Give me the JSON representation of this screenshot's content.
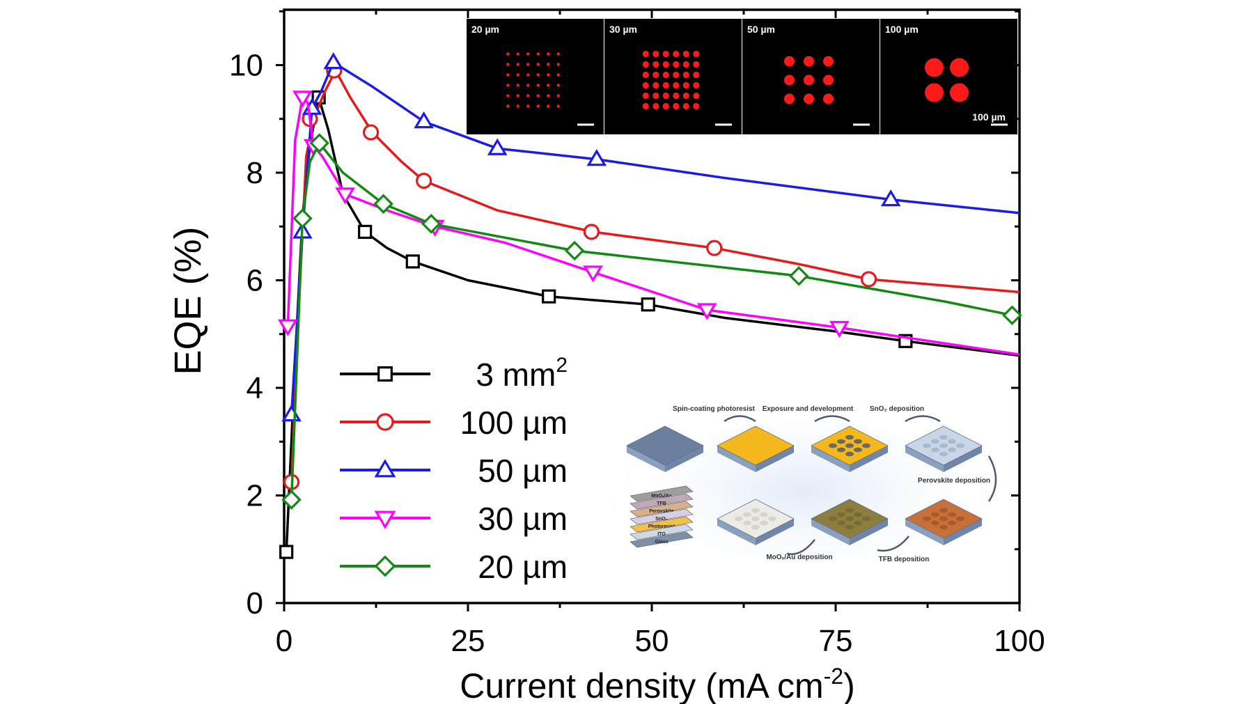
{
  "chart_data": {
    "type": "line",
    "xlabel": "Current density (mA cm",
    "xlabel_sup": "-2",
    "xlabel_end": ")",
    "ylabel": "EQE (%)",
    "xlim": [
      0,
      100
    ],
    "ylim": [
      0,
      11
    ],
    "xticks": [
      "0",
      "25",
      "50",
      "75",
      "100"
    ],
    "yticks": [
      "0",
      "2",
      "4",
      "6",
      "8",
      "10"
    ],
    "grid": false,
    "legend_position": "bottom-left",
    "series": [
      {
        "name": "3 mm",
        "name_sup": "2",
        "color": "#000000",
        "marker": "square",
        "points": [
          [
            0.3,
            0.95
          ],
          [
            1.5,
            4.5
          ],
          [
            2.5,
            7.2
          ],
          [
            3.5,
            8.5
          ],
          [
            4.7,
            9.4
          ],
          [
            6,
            8.8
          ],
          [
            8,
            7.6
          ],
          [
            11,
            6.9
          ],
          [
            14,
            6.6
          ],
          [
            17.5,
            6.35
          ],
          [
            25,
            6.0
          ],
          [
            36,
            5.7
          ],
          [
            49.5,
            5.55
          ],
          [
            60,
            5.3
          ],
          [
            75,
            5.05
          ],
          [
            84.5,
            4.87
          ],
          [
            100,
            4.6
          ]
        ],
        "marked": [
          [
            0.3,
            0.95
          ],
          [
            4.7,
            9.4
          ],
          [
            11,
            6.9
          ],
          [
            17.5,
            6.35
          ],
          [
            36,
            5.7
          ],
          [
            49.5,
            5.55
          ],
          [
            84.5,
            4.87
          ]
        ]
      },
      {
        "name": "100 µm",
        "color": "#e8191b",
        "marker": "circle",
        "points": [
          [
            1,
            2.25
          ],
          [
            2,
            5.5
          ],
          [
            3,
            8.3
          ],
          [
            4,
            9.0
          ],
          [
            5.5,
            9.5
          ],
          [
            7,
            9.9
          ],
          [
            9,
            9.4
          ],
          [
            12,
            8.75
          ],
          [
            16,
            8.2
          ],
          [
            19,
            7.85
          ],
          [
            29,
            7.3
          ],
          [
            42,
            6.9
          ],
          [
            58.5,
            6.6
          ],
          [
            70,
            6.3
          ],
          [
            79.5,
            6.02
          ],
          [
            90,
            5.9
          ],
          [
            100,
            5.78
          ]
        ],
        "marked": [
          [
            1,
            2.25
          ],
          [
            3.5,
            9.0
          ],
          [
            6.8,
            9.9
          ],
          [
            11.8,
            8.75
          ],
          [
            19,
            7.85
          ],
          [
            41.8,
            6.9
          ],
          [
            58.5,
            6.6
          ],
          [
            79.5,
            6.02
          ]
        ]
      },
      {
        "name": "50 µm",
        "color": "#1a1be8",
        "marker": "triangle-up",
        "points": [
          [
            1,
            3.5
          ],
          [
            2.5,
            6.9
          ],
          [
            3.8,
            9.2
          ],
          [
            5,
            9.5
          ],
          [
            6.7,
            10.05
          ],
          [
            12,
            9.6
          ],
          [
            19,
            8.95
          ],
          [
            29,
            8.45
          ],
          [
            42.5,
            8.25
          ],
          [
            60,
            7.9
          ],
          [
            82.5,
            7.5
          ],
          [
            100,
            7.25
          ]
        ],
        "marked": [
          [
            1,
            3.5
          ],
          [
            2.5,
            6.9
          ],
          [
            3.8,
            9.2
          ],
          [
            6.7,
            10.05
          ],
          [
            19,
            8.95
          ],
          [
            29,
            8.45
          ],
          [
            42.5,
            8.25
          ],
          [
            82.5,
            7.5
          ]
        ]
      },
      {
        "name": "30 µm",
        "color": "#ff00ff",
        "marker": "triangle-down",
        "points": [
          [
            0.5,
            5.15
          ],
          [
            1.5,
            8.6
          ],
          [
            2.5,
            9.4
          ],
          [
            3.2,
            9.3
          ],
          [
            4,
            8.5
          ],
          [
            5.2,
            8.3
          ],
          [
            8.3,
            7.6
          ],
          [
            14,
            7.3
          ],
          [
            20.5,
            7.0
          ],
          [
            30,
            6.7
          ],
          [
            42,
            6.15
          ],
          [
            57.5,
            5.45
          ],
          [
            75.5,
            5.12
          ],
          [
            100,
            4.62
          ]
        ],
        "marked": [
          [
            0.5,
            5.15
          ],
          [
            2.5,
            9.4
          ],
          [
            4,
            8.5
          ],
          [
            8.3,
            7.6
          ],
          [
            20.5,
            7.0
          ],
          [
            42,
            6.15
          ],
          [
            57.5,
            5.45
          ],
          [
            75.5,
            5.12
          ]
        ]
      },
      {
        "name": "20 µm",
        "color": "#118a11",
        "marker": "diamond",
        "points": [
          [
            1,
            1.92
          ],
          [
            2.5,
            7.15
          ],
          [
            3.5,
            8.2
          ],
          [
            4.8,
            8.55
          ],
          [
            8,
            8.0
          ],
          [
            13.5,
            7.42
          ],
          [
            20,
            7.05
          ],
          [
            39.5,
            6.55
          ],
          [
            70,
            6.08
          ],
          [
            90,
            5.6
          ],
          [
            99,
            5.35
          ]
        ],
        "marked": [
          [
            1,
            1.92
          ],
          [
            2.5,
            7.15
          ],
          [
            4.8,
            8.55
          ],
          [
            13.5,
            7.42
          ],
          [
            20,
            7.05
          ],
          [
            39.5,
            6.55
          ],
          [
            70,
            6.08
          ],
          [
            99,
            5.35
          ]
        ]
      }
    ]
  },
  "inset_micrographs": {
    "panels": [
      "20 µm",
      "30 µm",
      "50 µm",
      "100 µm"
    ],
    "scale_label": "100 µm",
    "dot_color": "#ff1a1a",
    "background": "#000000"
  },
  "inset_schematic": {
    "steps": [
      "Spin-coating photoresist",
      "Exposure and development",
      "SnO₂ deposition",
      "Perovskite deposition",
      "TFB deposition",
      "MoOₓ/Au deposition"
    ],
    "stack_layers": [
      "MoOₓ/Au",
      "TFB",
      "Perovskite",
      "SnO₂",
      "Photoresist",
      "ITO",
      "Glass"
    ]
  }
}
